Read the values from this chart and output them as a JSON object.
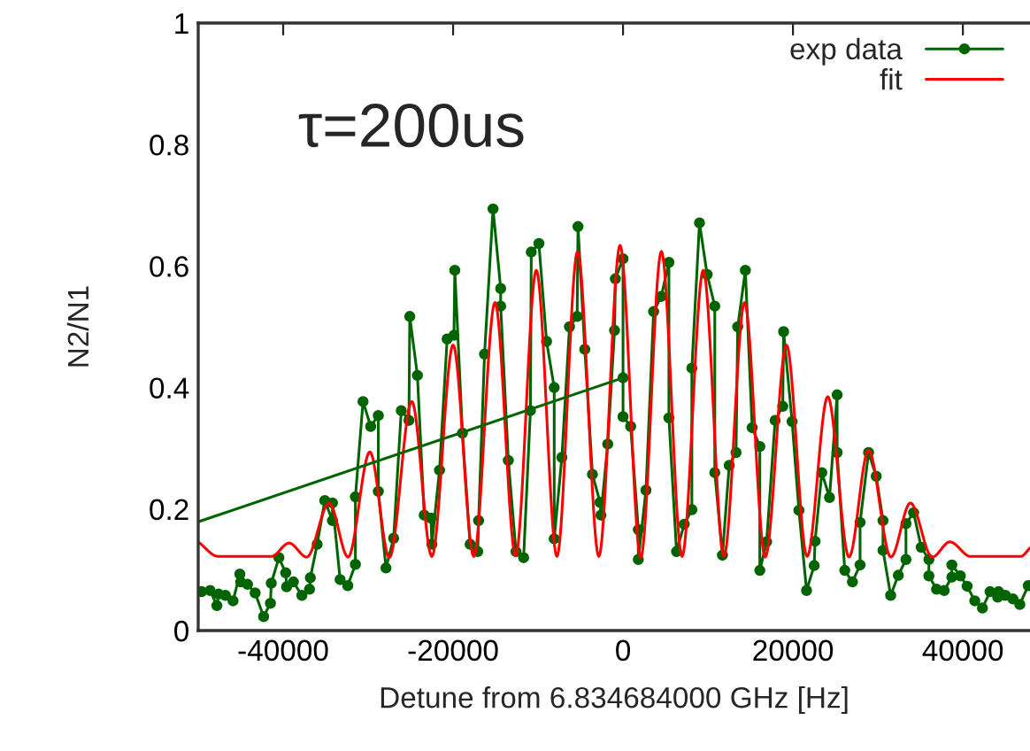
{
  "chart_data": {
    "type": "line",
    "xlabel": "Detune from 6.834684000 GHz [Hz]",
    "ylabel": "N2/N1",
    "annotations": [
      "τ=200us"
    ],
    "xlim": [
      -50000,
      47900
    ],
    "xticks": [
      -40000,
      -20000,
      0,
      20000,
      40000
    ],
    "ylim": [
      0,
      1
    ],
    "yticks": [
      0,
      0.2,
      0.4,
      0.6,
      0.8,
      1
    ],
    "grid": false,
    "legend": "top right",
    "series": [
      {
        "name": "exp data",
        "color": "#006400",
        "marker": "circle",
        "x": [
          -49600,
          -48600,
          -47800,
          -47600,
          -46800,
          -45900,
          -45100,
          -45000,
          -44200,
          -43300,
          -42300,
          -41500,
          -41400,
          -40500,
          -39700,
          -39600,
          -38800,
          -37800,
          -36900,
          -36800,
          -36000,
          -35100,
          -34200,
          -34200,
          -33300,
          -32400,
          -31500,
          -31500,
          -30600,
          -29700,
          -28800,
          -28800,
          -27900,
          -27000,
          -26100,
          -25200,
          -25100,
          -24200,
          -23400,
          -22600,
          -22500,
          -21600,
          -20700,
          -19900,
          -19800,
          -18900,
          -18000,
          -17100,
          -17000,
          -16300,
          -15300,
          -14400,
          -14400,
          -13500,
          -12600,
          -11700,
          -10900,
          -10800,
          -9900,
          -9000,
          -8100,
          -8100,
          -7200,
          -6300,
          -5400,
          -5300,
          -4500,
          -3600,
          -2700,
          -2600,
          -1800,
          -1000,
          -900,
          0,
          0,
          0,
          900,
          1800,
          1800,
          2700,
          3600,
          4500,
          5400,
          5400,
          6300,
          7200,
          8100,
          8100,
          9000,
          9900,
          10800,
          10800,
          11700,
          12500,
          13300,
          13500,
          14400,
          15200,
          16100,
          16100,
          16900,
          17900,
          18800,
          18900,
          19900,
          20700,
          21600,
          22500,
          22600,
          23400,
          24300,
          25200,
          25200,
          26100,
          27000,
          27900,
          27900,
          28900,
          29800,
          30600,
          30600,
          31500,
          32400,
          33300,
          33300,
          34200,
          35100,
          36000,
          36000,
          36900,
          37800,
          38700,
          38700,
          39700,
          40500,
          41400,
          42300,
          43200,
          44100,
          44200,
          45000,
          45900,
          46700,
          47700
        ],
        "values": [
          0.064,
          0.066,
          0.041,
          0.06,
          0.058,
          0.049,
          0.093,
          0.08,
          0.076,
          0.062,
          0.023,
          0.045,
          0.078,
          0.12,
          0.095,
          0.072,
          0.08,
          0.058,
          0.068,
          0.087,
          0.142,
          0.214,
          0.181,
          0.21,
          0.084,
          0.074,
          0.109,
          0.22,
          0.377,
          0.336,
          0.354,
          0.229,
          0.103,
          0.152,
          0.362,
          0.346,
          0.517,
          0.42,
          0.19,
          0.185,
          0.142,
          0.264,
          0.48,
          0.486,
          0.593,
          0.325,
          0.142,
          0.13,
          0.181,
          0.455,
          0.694,
          0.563,
          0.534,
          0.28,
          0.13,
          0.12,
          0.362,
          0.623,
          0.637,
          0.476,
          0.4,
          0.151,
          0.285,
          0.5,
          0.517,
          0.665,
          0.463,
          0.257,
          0.211,
          0.19,
          0.307,
          0.494,
          0.579,
          0.612,
          0.416,
          0.352,
          0.336,
          0.166,
          0.117,
          0.231,
          0.525,
          0.55,
          0.606,
          0.35,
          0.13,
          0.175,
          0.199,
          0.432,
          0.671,
          0.586,
          0.534,
          0.26,
          0.124,
          0.272,
          0.293,
          0.5,
          0.593,
          0.334,
          0.303,
          0.099,
          0.146,
          0.346,
          0.369,
          0.492,
          0.344,
          0.198,
          0.066,
          0.107,
          0.147,
          0.26,
          0.219,
          0.388,
          0.293,
          0.099,
          0.08,
          0.108,
          0.178,
          0.293,
          0.254,
          0.181,
          0.132,
          0.058,
          0.091,
          0.117,
          0.176,
          0.194,
          0.137,
          0.117,
          0.09,
          0.068,
          0.066,
          0.088,
          0.108,
          0.09,
          0.073,
          0.049,
          0.037,
          0.064,
          0.055,
          0.064,
          0.058,
          0.052,
          0.043,
          0.074
        ]
      },
      {
        "name": "fit",
        "color": "#ff0000",
        "marker": "none",
        "x": [
          -50000,
          -47639,
          -41389,
          -39306,
          -37222,
          -34583,
          -32361,
          -29792,
          -27500,
          -24861,
          -22500,
          -20000,
          -17569,
          -15069,
          -12639,
          -10208,
          -7778,
          -5347,
          -2847,
          -347,
          2083,
          4514,
          6944,
          9444,
          11875,
          14306,
          16736,
          19236,
          21667,
          24097,
          26597,
          28889,
          31528,
          33819,
          36389,
          38472,
          40903,
          46806,
          47900
        ],
        "values": [
          0.146,
          0.122,
          0.122,
          0.144,
          0.121,
          0.21,
          0.121,
          0.294,
          0.12,
          0.377,
          0.122,
          0.47,
          0.122,
          0.54,
          0.123,
          0.593,
          0.122,
          0.624,
          0.122,
          0.634,
          0.12,
          0.624,
          0.122,
          0.593,
          0.122,
          0.54,
          0.121,
          0.47,
          0.122,
          0.385,
          0.121,
          0.297,
          0.121,
          0.21,
          0.121,
          0.146,
          0.122,
          0.122,
          0.136
        ]
      },
      {
        "color": "#006400",
        "marker": "none",
        "x": [
          -50000,
          0
        ],
        "values": [
          0.179,
          0.416
        ]
      }
    ]
  }
}
